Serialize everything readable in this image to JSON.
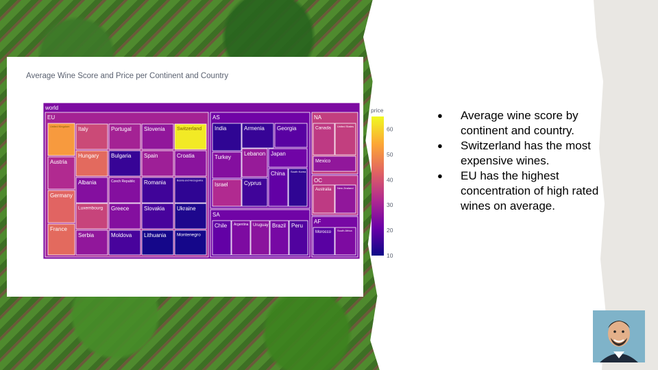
{
  "slide": {
    "bullets": [
      "Average wine score by continent and country.",
      "Switzerland has the most expensive wines.",
      "EU has the highest concentration of high rated wines on average."
    ]
  },
  "avatar": {
    "icon": "person-avatar-icon"
  },
  "chart_data": {
    "type": "treemap",
    "title": "Average Wine Score and Price per Continent and Country",
    "root": "world",
    "colorbar": {
      "title": "price",
      "range": [
        10,
        65
      ],
      "ticks": [
        10,
        20,
        30,
        40,
        50,
        60
      ]
    },
    "colorscale": [
      "#0d0887",
      "#6a00a8",
      "#b12a90",
      "#e16462",
      "#fca636",
      "#f0f921"
    ],
    "nodes": [
      {
        "name": "world",
        "parent": "",
        "price": 24
      },
      {
        "name": "EU",
        "parent": "world",
        "price": 30
      },
      {
        "name": "AS",
        "parent": "world",
        "price": 22
      },
      {
        "name": "NA",
        "parent": "world",
        "price": 36
      },
      {
        "name": "OC",
        "parent": "world",
        "price": 34
      },
      {
        "name": "SA",
        "parent": "world",
        "price": 22
      },
      {
        "name": "AF",
        "parent": "world",
        "price": 23
      },
      {
        "name": "United Kingdom",
        "parent": "EU",
        "price": 52
      },
      {
        "name": "Austria",
        "parent": "EU",
        "price": 32
      },
      {
        "name": "Germany",
        "parent": "EU",
        "price": 43
      },
      {
        "name": "France",
        "parent": "EU",
        "price": 44
      },
      {
        "name": "Italy",
        "parent": "EU",
        "price": 38
      },
      {
        "name": "Hungary",
        "parent": "EU",
        "price": 44
      },
      {
        "name": "Albania",
        "parent": "EU",
        "price": 25
      },
      {
        "name": "Luxembourg",
        "parent": "EU",
        "price": 37
      },
      {
        "name": "Serbia",
        "parent": "EU",
        "price": 27
      },
      {
        "name": "Portugal",
        "parent": "EU",
        "price": 30
      },
      {
        "name": "Bulgaria",
        "parent": "EU",
        "price": 15
      },
      {
        "name": "Czech Republic",
        "parent": "EU",
        "price": 25
      },
      {
        "name": "Greece",
        "parent": "EU",
        "price": 25
      },
      {
        "name": "Moldova",
        "parent": "EU",
        "price": 17
      },
      {
        "name": "Slovenia",
        "parent": "EU",
        "price": 27
      },
      {
        "name": "Spain",
        "parent": "EU",
        "price": 29
      },
      {
        "name": "Romania",
        "parent": "EU",
        "price": 16
      },
      {
        "name": "Slovakia",
        "parent": "EU",
        "price": 17
      },
      {
        "name": "Lithuania",
        "parent": "EU",
        "price": 11
      },
      {
        "name": "Switzerland",
        "parent": "EU",
        "price": 63
      },
      {
        "name": "Croatia",
        "parent": "EU",
        "price": 26
      },
      {
        "name": "Bosnia and Herzegovina",
        "parent": "EU",
        "price": 14
      },
      {
        "name": "Ukraine",
        "parent": "EU",
        "price": 12
      },
      {
        "name": "Montenegro",
        "parent": "EU",
        "price": 11
      },
      {
        "name": "India",
        "parent": "AS",
        "price": 14
      },
      {
        "name": "Turkey",
        "parent": "AS",
        "price": 25
      },
      {
        "name": "Israel",
        "parent": "AS",
        "price": 32
      },
      {
        "name": "Armenia",
        "parent": "AS",
        "price": 15
      },
      {
        "name": "Lebanon",
        "parent": "AS",
        "price": 28
      },
      {
        "name": "Cyprus",
        "parent": "AS",
        "price": 16
      },
      {
        "name": "Georgia",
        "parent": "AS",
        "price": 19
      },
      {
        "name": "Japan",
        "parent": "AS",
        "price": 22
      },
      {
        "name": "China",
        "parent": "AS",
        "price": 20
      },
      {
        "name": "South Korea",
        "parent": "AS",
        "price": 14
      },
      {
        "name": "Chile",
        "parent": "SA",
        "price": 20
      },
      {
        "name": "Argentina",
        "parent": "SA",
        "price": 24
      },
      {
        "name": "Uruguay",
        "parent": "SA",
        "price": 26
      },
      {
        "name": "Brazil",
        "parent": "SA",
        "price": 23
      },
      {
        "name": "Peru",
        "parent": "SA",
        "price": 18
      },
      {
        "name": "Canada",
        "parent": "NA",
        "price": 35
      },
      {
        "name": "United States",
        "parent": "NA",
        "price": 36
      },
      {
        "name": "Mexico",
        "parent": "NA",
        "price": 27
      },
      {
        "name": "Australia",
        "parent": "OC",
        "price": 35
      },
      {
        "name": "New Zealand",
        "parent": "OC",
        "price": 27
      },
      {
        "name": "Morocco",
        "parent": "AF",
        "price": 19
      },
      {
        "name": "South Africa",
        "parent": "AF",
        "price": 24
      }
    ]
  }
}
